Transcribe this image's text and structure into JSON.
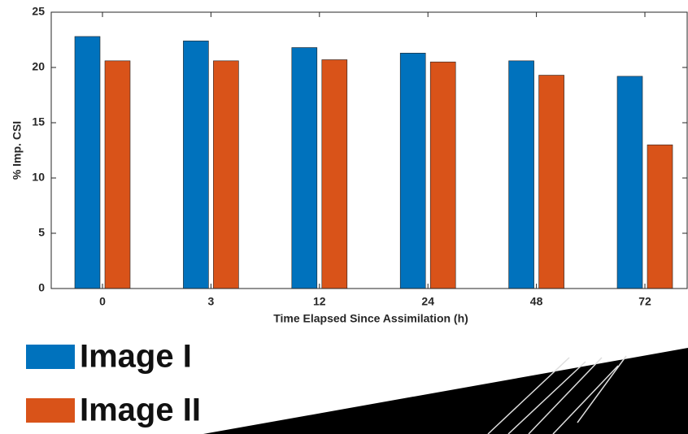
{
  "chart_data": {
    "type": "bar",
    "x_label": "Time Elapsed Since Assimilation (h)",
    "y_label": "% Imp. CSI",
    "categories": [
      "0",
      "3",
      "12",
      "24",
      "48",
      "72"
    ],
    "series": [
      {
        "name": "Image I",
        "color": "#0072bd",
        "values": [
          22.8,
          22.4,
          21.8,
          21.3,
          20.6,
          19.2
        ]
      },
      {
        "name": "Image II",
        "color": "#d95319",
        "values": [
          20.6,
          20.6,
          20.7,
          20.5,
          19.3,
          13.0
        ]
      }
    ],
    "ylim": [
      0,
      25
    ],
    "yticks": [
      0,
      5,
      10,
      15,
      20,
      25
    ]
  }
}
